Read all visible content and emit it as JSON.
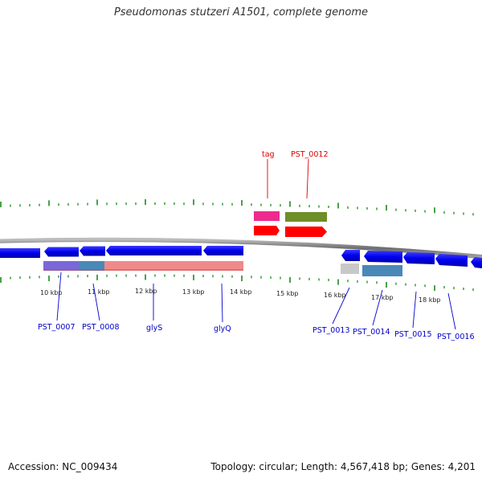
{
  "title": "Pseudomonas stutzeri A1501, complete genome",
  "accession_label": "Accession: NC_009434",
  "summary_label": "Topology: circular; Length: 4,567,418 bp; Genes: 4,201",
  "colors": {
    "backbone": "#8a8a8a",
    "cds": "#0000ee",
    "tick": "#1a8a1a",
    "rna_label": "#dd0000",
    "gene_label": "#0000cc",
    "trna": "#ff0000",
    "trna_feature": "#ee2a8e",
    "trna_feature2": "#6e8e28"
  },
  "scale_labels": [
    "10 kbp",
    "11 kbp",
    "12 kbp",
    "13 kbp",
    "14 kbp",
    "15 kbp",
    "16 kbp",
    "17 kbp",
    "18 kbp"
  ],
  "gene_labels_bottom": [
    "PST_0007",
    "PST_0008",
    "glyS",
    "glyQ",
    "PST_0013",
    "PST_0014",
    "PST_0015",
    "PST_0016"
  ],
  "gene_labels_top": [
    "tag",
    "PST_0012"
  ]
}
